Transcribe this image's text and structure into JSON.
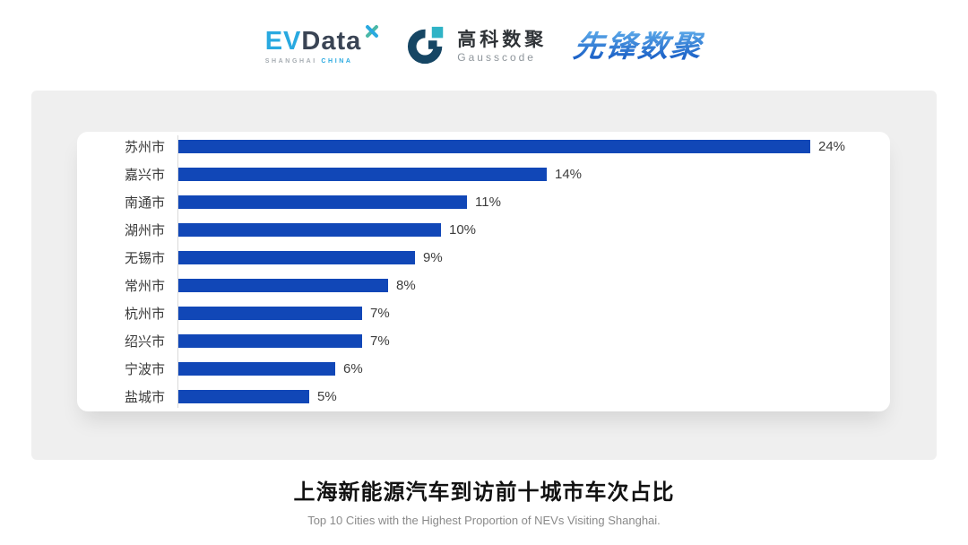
{
  "header": {
    "evdata_logo": {
      "ev": "EV",
      "data": "Data",
      "subtext_left": "SHANGHAI",
      "subtext_right": "CHINA"
    },
    "gausscode_logo": {
      "name_cn": "高科数聚",
      "name_en": "Gausscode"
    },
    "pioneer_logo": {
      "text": "先锋数聚"
    }
  },
  "chart_data": {
    "type": "bar",
    "orientation": "horizontal",
    "title": "上海新能源汽车到访前十城市车次占比",
    "subtitle": "Top 10 Cities with the Highest Proportion of  NEVs Visiting Shanghai.",
    "categories": [
      "苏州市",
      "嘉兴市",
      "南通市",
      "湖州市",
      "无锡市",
      "常州市",
      "杭州市",
      "绍兴市",
      "宁波市",
      "盐城市"
    ],
    "values": [
      24,
      14,
      11,
      10,
      9,
      8,
      7,
      7,
      6,
      5
    ],
    "value_labels": [
      "24%",
      "14%",
      "11%",
      "10%",
      "9%",
      "8%",
      "7%",
      "7%",
      "6%",
      "5%"
    ],
    "unit": "%",
    "xlabel": "",
    "ylabel": "",
    "xlim": [
      0,
      27
    ],
    "grid": false,
    "legend": false,
    "bar_color": "#1147b7",
    "axis_line_color": "#d9d9d9",
    "label_color": "#3a3a3a"
  },
  "footer": {
    "title": "上海新能源汽车到访前十城市车次占比",
    "subtitle": "Top 10 Cities with the Highest Proportion of  NEVs Visiting Shanghai."
  }
}
